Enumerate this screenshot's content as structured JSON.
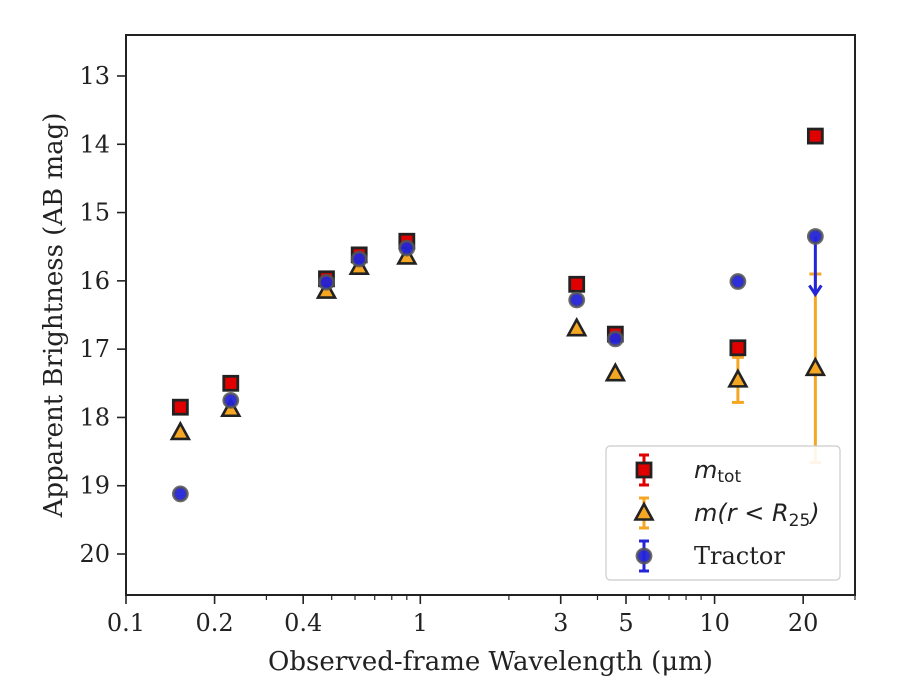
{
  "chart_data": {
    "type": "scatter",
    "xlabel": "Observed-frame Wavelength (μm)",
    "ylabel": "Apparent Brightness (AB mag)",
    "x_scale": "log",
    "xlim": [
      0.1,
      30
    ],
    "ylim": [
      20.6,
      12.4
    ],
    "y_inverted": true,
    "x_ticks": [
      0.1,
      0.2,
      0.4,
      1,
      3,
      5,
      10,
      20
    ],
    "x_tick_labels": [
      "0.1",
      "0.2",
      "0.4",
      "1",
      "3",
      "5",
      "10",
      "20"
    ],
    "y_ticks": [
      13,
      14,
      15,
      16,
      17,
      18,
      19,
      20
    ],
    "y_tick_labels": [
      "13",
      "14",
      "15",
      "16",
      "17",
      "18",
      "19",
      "20"
    ],
    "grid": false,
    "legend_position": "lower right",
    "series": [
      {
        "name": "m_tot",
        "legend_main": "m",
        "legend_sub": "tot",
        "marker": "square",
        "color": "#e00000",
        "edge_color": "#222222",
        "points": [
          {
            "x": 0.153,
            "y": 17.85
          },
          {
            "x": 0.227,
            "y": 17.5
          },
          {
            "x": 0.48,
            "y": 15.97
          },
          {
            "x": 0.62,
            "y": 15.62
          },
          {
            "x": 0.9,
            "y": 15.42
          },
          {
            "x": 3.4,
            "y": 16.05
          },
          {
            "x": 4.6,
            "y": 16.78
          },
          {
            "x": 12.0,
            "y": 16.98
          },
          {
            "x": 22.0,
            "y": 13.88
          }
        ]
      },
      {
        "name": "m(r < R25)",
        "legend_main": "m(r < R",
        "legend_sub": "25",
        "legend_tail": ")",
        "marker": "triangle",
        "color": "#f5a623",
        "edge_color": "#222222",
        "points": [
          {
            "x": 0.153,
            "y": 18.22
          },
          {
            "x": 0.227,
            "y": 17.88
          },
          {
            "x": 0.48,
            "y": 16.15
          },
          {
            "x": 0.62,
            "y": 15.8
          },
          {
            "x": 0.9,
            "y": 15.65
          },
          {
            "x": 3.4,
            "y": 16.7
          },
          {
            "x": 4.6,
            "y": 17.36
          },
          {
            "x": 12.0,
            "y": 17.45,
            "err": 0.33
          },
          {
            "x": 22.0,
            "y": 17.28,
            "err_upper": 1.38,
            "err_lower": 1.38
          }
        ]
      },
      {
        "name": "Tractor",
        "marker": "circle",
        "color": "#2424d8",
        "edge_color": "#555555",
        "points": [
          {
            "x": 0.153,
            "y": 19.12
          },
          {
            "x": 0.227,
            "y": 17.75
          },
          {
            "x": 0.48,
            "y": 16.02
          },
          {
            "x": 0.62,
            "y": 15.68
          },
          {
            "x": 0.9,
            "y": 15.52
          },
          {
            "x": 3.4,
            "y": 16.28
          },
          {
            "x": 4.6,
            "y": 16.85
          },
          {
            "x": 12.0,
            "y": 16.01
          },
          {
            "x": 22.0,
            "y": 15.35,
            "upper_limit_arrow": true
          }
        ]
      }
    ]
  }
}
